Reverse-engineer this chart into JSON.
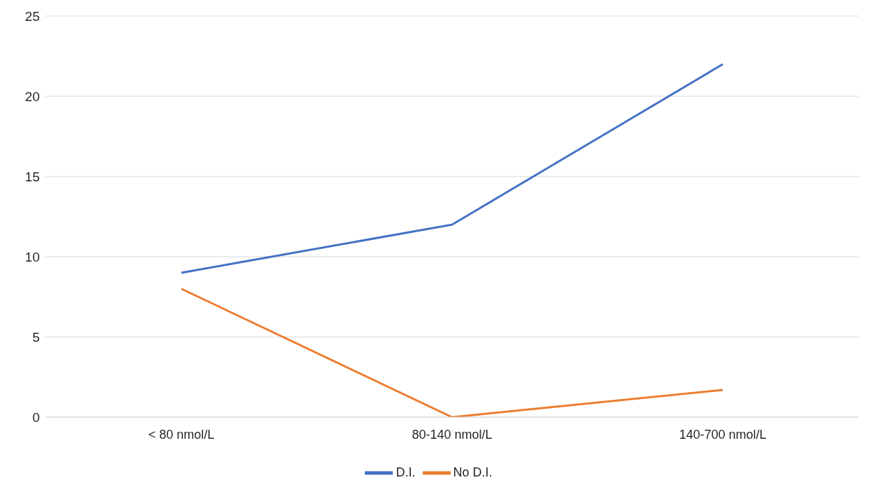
{
  "chart_data": {
    "type": "line",
    "categories": [
      "< 80 nmol/L",
      "80-140 nmol/L",
      "140-700 nmol/L"
    ],
    "series": [
      {
        "name": "D.I.",
        "color": "#4472c4",
        "values": [
          9,
          12,
          22
        ]
      },
      {
        "name": "No D.I.",
        "color": "#ed7d31",
        "values": [
          8,
          0,
          1.7
        ]
      }
    ],
    "ylim": [
      0,
      25
    ],
    "yticks": [
      0,
      5,
      10,
      15,
      20,
      25
    ],
    "grid": "y",
    "legend": "bottom",
    "marker": "none",
    "line_style": "solid"
  }
}
